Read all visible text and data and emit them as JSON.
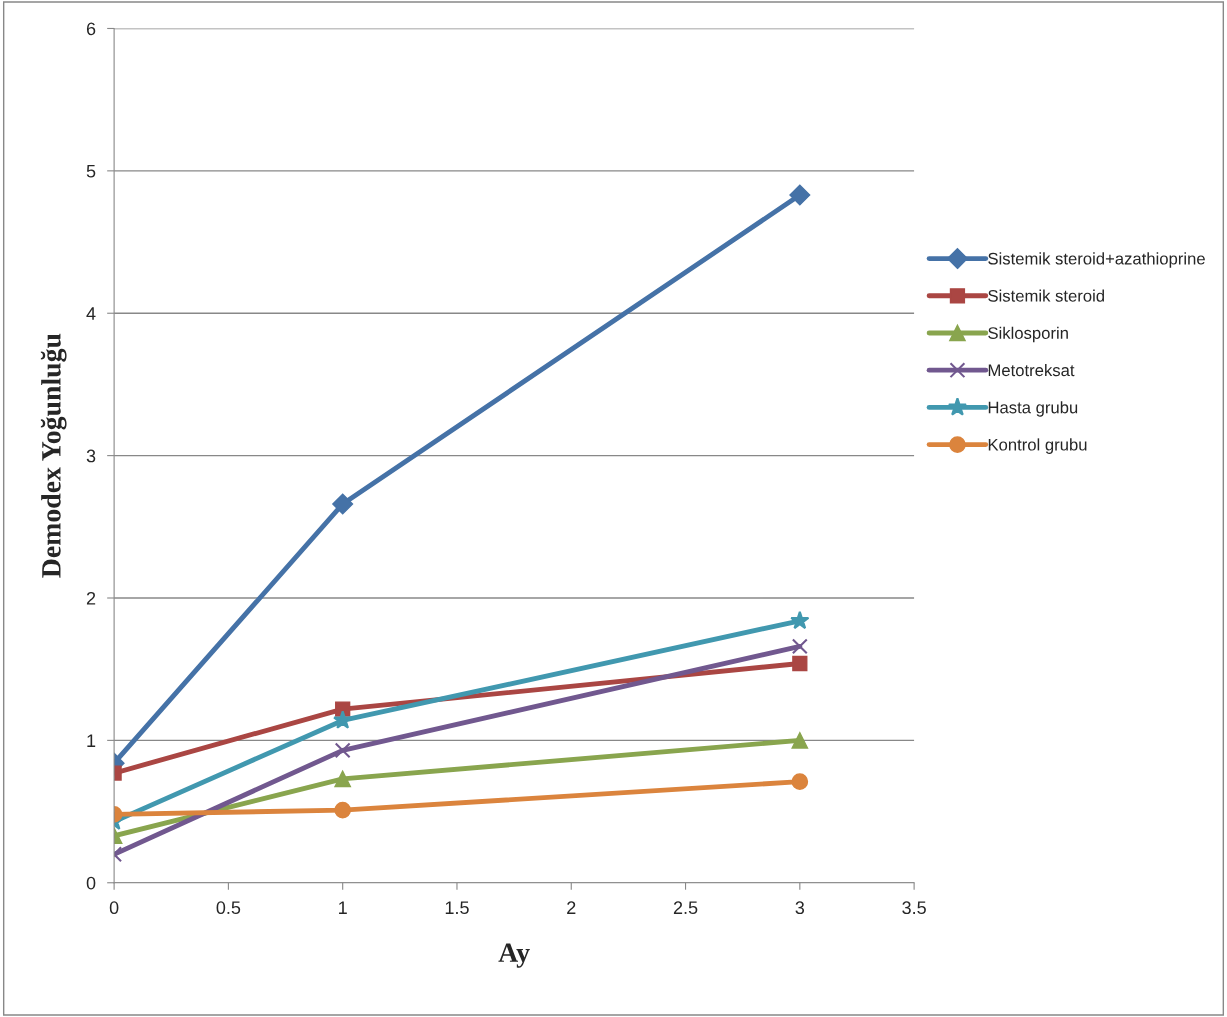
{
  "chart_data": {
    "type": "line",
    "xlabel": "Ay",
    "ylabel": "Demodex Yoğunluğu",
    "x": [
      0,
      1,
      3
    ],
    "series": [
      {
        "name": "Sistemik steroid+azathioprine",
        "color": "#4572a7",
        "marker": "diamond",
        "values": [
          0.84,
          2.66,
          4.83
        ]
      },
      {
        "name": "Sistemik steroid",
        "color": "#aa4643",
        "marker": "square",
        "values": [
          0.77,
          1.22,
          1.54
        ]
      },
      {
        "name": "Siklosporin",
        "color": "#89a54e",
        "marker": "triangle",
        "values": [
          0.33,
          0.73,
          1.0
        ]
      },
      {
        "name": "Metotreksat",
        "color": "#71588f",
        "marker": "cross",
        "values": [
          0.2,
          0.93,
          1.66
        ]
      },
      {
        "name": "Hasta grubu",
        "color": "#4198af",
        "marker": "star",
        "values": [
          0.43,
          1.14,
          1.84
        ]
      },
      {
        "name": "Kontrol grubu",
        "color": "#db843d",
        "marker": "circle",
        "values": [
          0.48,
          0.51,
          0.71
        ]
      }
    ],
    "xlim": [
      0,
      3.5
    ],
    "xticks": [
      0,
      0.5,
      1,
      1.5,
      2,
      2.5,
      3,
      3.5
    ],
    "ylim": [
      0,
      6
    ],
    "yticks": [
      0,
      1,
      2,
      3,
      4,
      5,
      6
    ],
    "grid": "y",
    "legend": "right"
  }
}
